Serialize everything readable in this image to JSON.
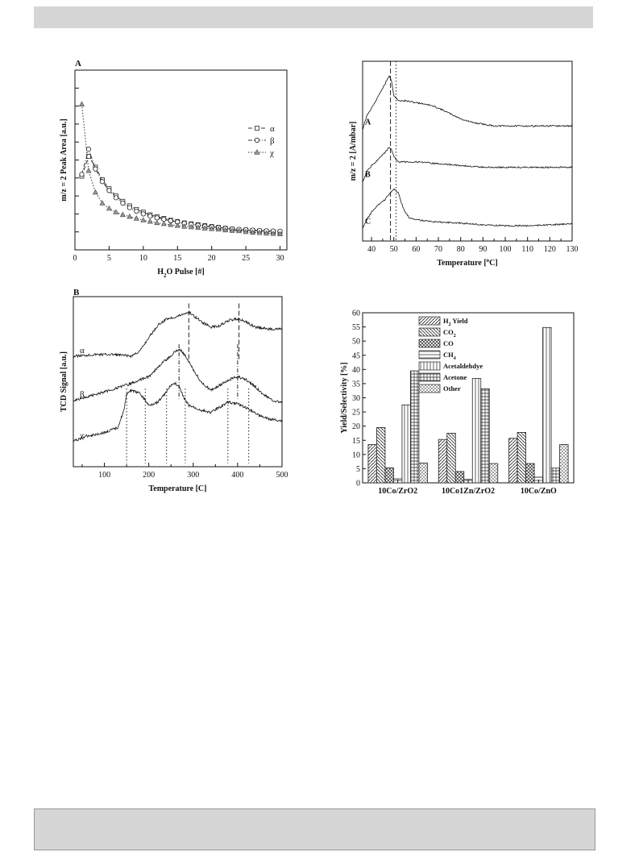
{
  "chart_data": [
    {
      "panel": "A",
      "type": "line",
      "xlabel": "H2O Pulse [#]",
      "ylabel": "m/z = 2 Peak Area [a.u.]",
      "xlim": [
        0,
        31
      ],
      "ylim": [
        0,
        10
      ],
      "xticks": [
        0,
        5,
        10,
        15,
        20,
        25,
        30
      ],
      "yticks_labeled": false,
      "legend": {
        "placement": "right",
        "entries": [
          "α",
          "β",
          "χ"
        ]
      },
      "series": [
        {
          "name": "α",
          "marker": "square",
          "dash": "dash",
          "x": [
            1,
            2,
            3,
            4,
            5,
            6,
            7,
            8,
            9,
            10,
            11,
            12,
            13,
            14,
            15,
            16,
            17,
            18,
            19,
            20,
            21,
            22,
            23,
            24,
            25,
            26,
            27,
            28,
            29,
            30
          ],
          "y": [
            4.1,
            5.2,
            4.6,
            3.9,
            3.4,
            3.0,
            2.7,
            2.45,
            2.25,
            2.1,
            1.95,
            1.85,
            1.75,
            1.65,
            1.58,
            1.5,
            1.45,
            1.4,
            1.35,
            1.3,
            1.25,
            1.2,
            1.15,
            1.1,
            1.1,
            1.08,
            1.05,
            1.03,
            1.0,
            1.0
          ]
        },
        {
          "name": "β",
          "marker": "circle",
          "dash": "dashdot",
          "x": [
            1,
            2,
            3,
            4,
            5,
            6,
            7,
            8,
            9,
            10,
            11,
            12,
            13,
            14,
            15,
            16,
            17,
            18,
            19,
            20,
            21,
            22,
            23,
            24,
            25,
            26,
            27,
            28,
            29,
            30
          ],
          "y": [
            4.2,
            5.6,
            4.5,
            3.8,
            3.3,
            2.9,
            2.6,
            2.35,
            2.15,
            2.0,
            1.88,
            1.78,
            1.7,
            1.62,
            1.55,
            1.48,
            1.42,
            1.37,
            1.32,
            1.28,
            1.24,
            1.2,
            1.17,
            1.14,
            1.12,
            1.1,
            1.08,
            1.06,
            1.05,
            1.04
          ]
        },
        {
          "name": "χ",
          "marker": "triangle",
          "dash": "dot",
          "x": [
            1,
            2,
            3,
            4,
            5,
            6,
            7,
            8,
            9,
            10,
            11,
            12,
            13,
            14,
            15,
            16,
            17,
            18,
            19,
            20,
            21,
            22,
            23,
            24,
            25,
            26,
            27,
            28,
            29,
            30
          ],
          "y": [
            8.1,
            4.4,
            3.2,
            2.6,
            2.3,
            2.1,
            1.95,
            1.85,
            1.75,
            1.65,
            1.58,
            1.5,
            1.45,
            1.4,
            1.35,
            1.3,
            1.27,
            1.24,
            1.2,
            1.17,
            1.14,
            1.1,
            1.07,
            1.05,
            1.0,
            0.97,
            0.95,
            0.92,
            0.9,
            0.88
          ]
        }
      ]
    },
    {
      "panel": "right-top",
      "type": "line",
      "xlabel": "Temperature [°C]",
      "ylabel": "m/z = 2 [A/mbar]",
      "xlim": [
        36,
        130
      ],
      "xticks": [
        40,
        50,
        60,
        70,
        80,
        90,
        100,
        110,
        120,
        130
      ],
      "ylim": [
        0,
        10
      ],
      "vlines": [
        {
          "x": 48.5,
          "style": "dashed"
        },
        {
          "x": 51,
          "style": "dotted"
        }
      ],
      "series": [
        {
          "name": "A",
          "x": [
            36,
            38,
            40,
            42,
            44,
            46,
            47,
            48,
            49,
            50,
            52,
            55,
            60,
            65,
            70,
            75,
            80,
            85,
            90,
            95,
            100,
            110,
            120,
            130
          ],
          "y": [
            6.2,
            7.0,
            7.4,
            7.8,
            8.3,
            8.7,
            9.0,
            9.2,
            8.9,
            8.1,
            7.8,
            7.8,
            7.7,
            7.6,
            7.4,
            7.1,
            6.8,
            6.6,
            6.5,
            6.4,
            6.4,
            6.4,
            6.4,
            6.4
          ]
        },
        {
          "name": "B",
          "x": [
            36,
            38,
            40,
            42,
            44,
            46,
            47,
            48,
            49,
            50,
            52,
            55,
            60,
            65,
            70,
            80,
            90,
            100,
            110,
            120,
            130
          ],
          "y": [
            3.3,
            3.9,
            4.2,
            4.4,
            4.7,
            4.9,
            5.1,
            5.2,
            5.1,
            4.7,
            4.4,
            4.4,
            4.4,
            4.35,
            4.3,
            4.2,
            4.1,
            4.1,
            4.1,
            4.1,
            4.1
          ]
        },
        {
          "name": "C",
          "x": [
            36,
            38,
            40,
            42,
            44,
            46,
            48,
            50,
            52,
            54,
            55,
            57,
            60,
            65,
            70,
            80,
            90,
            100,
            110,
            120,
            130
          ],
          "y": [
            0.7,
            1.2,
            1.6,
            1.9,
            2.1,
            2.3,
            2.6,
            2.9,
            2.7,
            1.9,
            1.6,
            1.3,
            1.2,
            1.1,
            1.05,
            1.0,
            0.9,
            0.85,
            0.85,
            0.9,
            0.95
          ]
        }
      ]
    },
    {
      "panel": "B",
      "type": "line",
      "xlabel": "Temperature [C]",
      "ylabel": "TCD Signal [a.u.]",
      "xlim": [
        30,
        500
      ],
      "xticks": [
        100,
        200,
        300,
        400,
        500
      ],
      "ylim": [
        0,
        10
      ],
      "vlines": [
        {
          "x": 290,
          "style": "dashed",
          "series": "α"
        },
        {
          "x": 403,
          "style": "dashed",
          "series": "α"
        },
        {
          "x": 268,
          "style": "dashdot",
          "series": "β"
        },
        {
          "x": 400,
          "style": "dashdot",
          "series": "β"
        },
        {
          "x": 150,
          "style": "dotted",
          "series": "χ"
        },
        {
          "x": 192,
          "style": "dotted",
          "series": "χ"
        },
        {
          "x": 240,
          "style": "dotted",
          "series": "χ"
        },
        {
          "x": 282,
          "style": "dotted",
          "series": "χ"
        },
        {
          "x": 378,
          "style": "dotted",
          "series": "χ"
        },
        {
          "x": 425,
          "style": "dotted",
          "series": "χ"
        }
      ],
      "series": [
        {
          "name": "α",
          "x": [
            30,
            80,
            120,
            160,
            180,
            200,
            220,
            240,
            260,
            280,
            290,
            300,
            320,
            340,
            360,
            380,
            400,
            420,
            440,
            470,
            500
          ],
          "y": [
            6.5,
            6.6,
            6.6,
            6.5,
            6.8,
            7.6,
            8.3,
            8.7,
            8.8,
            9.0,
            9.1,
            8.9,
            8.5,
            8.2,
            8.3,
            8.6,
            8.7,
            8.5,
            8.2,
            8.1,
            8.1
          ]
        },
        {
          "name": "β",
          "x": [
            30,
            60,
            100,
            150,
            200,
            230,
            250,
            260,
            270,
            280,
            290,
            300,
            320,
            340,
            360,
            380,
            400,
            420,
            440,
            460,
            480,
            500
          ],
          "y": [
            3.9,
            4.1,
            4.4,
            4.8,
            5.3,
            6.1,
            6.5,
            6.8,
            6.9,
            6.6,
            6.2,
            5.7,
            4.9,
            4.5,
            4.8,
            5.1,
            5.3,
            5.1,
            4.7,
            4.2,
            3.9,
            3.8
          ]
        },
        {
          "name": "χ",
          "x": [
            30,
            60,
            100,
            130,
            145,
            150,
            160,
            180,
            192,
            200,
            220,
            240,
            250,
            260,
            270,
            282,
            290,
            300,
            320,
            340,
            360,
            378,
            400,
            425,
            450,
            470,
            500
          ],
          "y": [
            1.5,
            1.8,
            2.0,
            2.3,
            3.4,
            4.3,
            4.5,
            4.3,
            3.9,
            3.6,
            3.8,
            4.4,
            4.8,
            4.9,
            4.6,
            3.9,
            3.6,
            3.5,
            3.3,
            3.2,
            3.5,
            3.8,
            3.7,
            3.4,
            3.0,
            2.8,
            2.7
          ]
        }
      ]
    },
    {
      "panel": "right-bottom",
      "type": "bar",
      "ylabel": "Yield/Selectivity [%]",
      "ylim": [
        0,
        60
      ],
      "yticks": [
        0,
        5,
        10,
        15,
        20,
        25,
        30,
        35,
        40,
        45,
        50,
        55,
        60
      ],
      "categories": [
        "10Co/ZrO2",
        "10Co1Zn/ZrO2",
        "10Co/ZnO"
      ],
      "legend": {
        "placement": "top-center"
      },
      "series": [
        {
          "name": "H2 Yield",
          "legend_label": "H",
          "legend_sub": "2",
          "legend_suffix": " Yield",
          "pattern": "diag-right",
          "values": [
            13.5,
            15.3,
            15.7
          ]
        },
        {
          "name": "CO2",
          "legend_label": "CO",
          "legend_sub": "2",
          "legend_suffix": "",
          "pattern": "diag-left",
          "values": [
            19.5,
            17.5,
            17.8
          ]
        },
        {
          "name": "CO",
          "legend_label": "CO",
          "legend_sub": "",
          "legend_suffix": "",
          "pattern": "crosshatch-dense",
          "values": [
            5.3,
            4.0,
            6.8
          ]
        },
        {
          "name": "CH4",
          "legend_label": "CH",
          "legend_sub": "4",
          "legend_suffix": "",
          "pattern": "horizontal",
          "values": [
            1.4,
            1.2,
            2.0
          ]
        },
        {
          "name": "Acetaldehdye",
          "legend_label": "Acetaldehdye",
          "legend_sub": "",
          "legend_suffix": "",
          "pattern": "vertical",
          "values": [
            27.5,
            36.8,
            54.8
          ]
        },
        {
          "name": "Acetone",
          "legend_label": "Acetone",
          "legend_sub": "",
          "legend_suffix": "",
          "pattern": "grid",
          "values": [
            39.5,
            33.2,
            5.2
          ]
        },
        {
          "name": "Other",
          "legend_label": "Other",
          "legend_sub": "",
          "legend_suffix": "",
          "pattern": "crosshatch",
          "values": [
            7.0,
            6.8,
            13.5
          ]
        }
      ]
    }
  ]
}
